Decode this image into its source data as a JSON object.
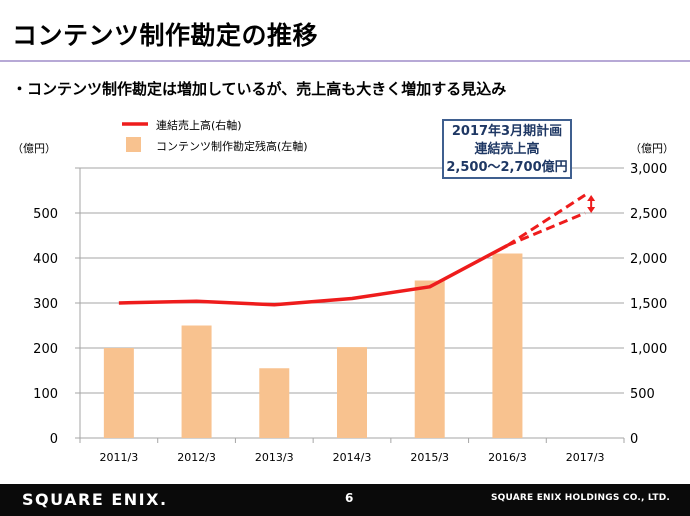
{
  "slide": {
    "title": "コンテンツ制作勘定の推移",
    "subtitle": "・コンテンツ制作勘定は増加しているが、売上高も大きく増加する見込み",
    "page_number": "6",
    "footer_logo": "SQUARE ENIX.",
    "footer_company": "SQUARE ENIX HOLDINGS CO., LTD.",
    "callout_lines": [
      "2017年3月期計画",
      "連結売上高",
      "2,500～2,700億円"
    ]
  },
  "chart_data": {
    "type": "bar",
    "categories": [
      "2011/3",
      "2012/3",
      "2013/3",
      "2014/3",
      "2015/3",
      "2016/3",
      "2017/3"
    ],
    "left_axis_unit": "（億円）",
    "right_axis_unit": "（億円）",
    "left_ticks": [
      "0",
      "100",
      "200",
      "300",
      "400",
      "500"
    ],
    "right_ticks": [
      "0",
      "500",
      "1,000",
      "1,500",
      "2,000",
      "2,500",
      "3,000"
    ],
    "left_ylim": [
      0,
      600
    ],
    "right_ylim": [
      0,
      3000
    ],
    "legend": {
      "placement": "top-left"
    },
    "series": [
      {
        "name": "コンテンツ制作勘定残高(左軸)",
        "kind": "bar",
        "axis": "left",
        "color": "#f8c28f",
        "values": [
          200,
          250,
          155,
          202,
          350,
          410,
          null
        ]
      },
      {
        "name": "連結売上高(右軸)",
        "kind": "line",
        "axis": "right",
        "color": "#ee1c1c",
        "values": [
          1500,
          1520,
          1480,
          1550,
          1680,
          2140,
          null
        ]
      }
    ],
    "forecast": {
      "category": "2017/3",
      "low": 2500,
      "high": 2700,
      "color": "#ee1c1c"
    }
  }
}
